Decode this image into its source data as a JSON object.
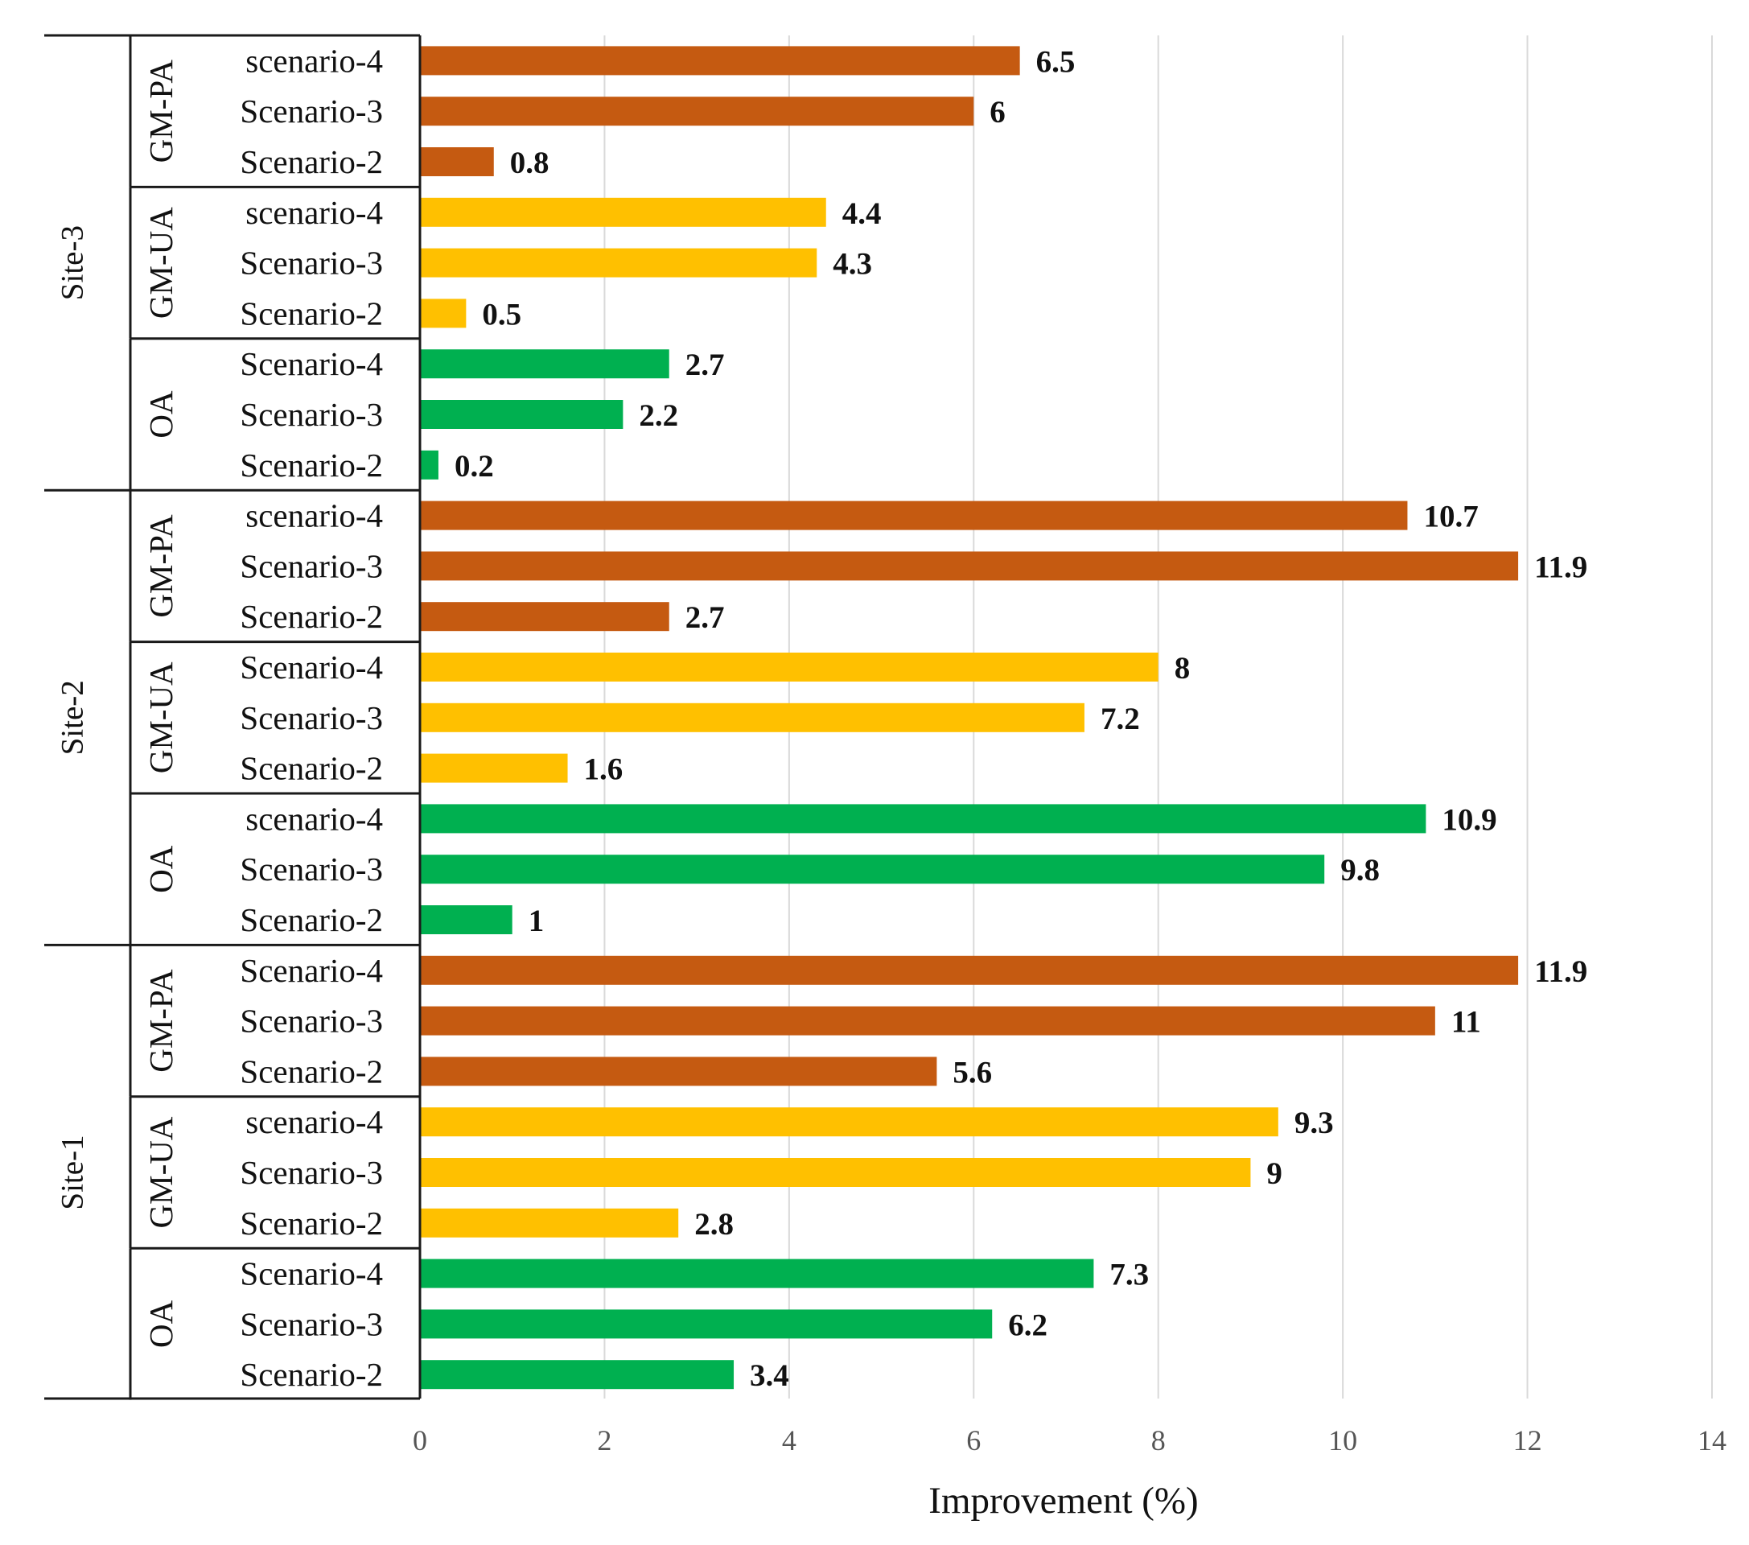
{
  "chart_data": {
    "type": "bar",
    "orientation": "horizontal",
    "title": "",
    "xlabel": "Improvement (%)",
    "ylabel": "",
    "xlim": [
      0,
      14
    ],
    "xticks": [
      0,
      2,
      4,
      6,
      8,
      10,
      12,
      14
    ],
    "grid": "vertical",
    "legend": "none",
    "colors": {
      "OA": "#00B050",
      "GM-UA": "#FFC000",
      "GM-PA": "#C55A11"
    },
    "sites": [
      {
        "name": "Site-3",
        "groups": [
          {
            "name": "GM-PA",
            "categories": [
              "scenario-4",
              "Scenario-3",
              "Scenario-2"
            ],
            "values": [
              6.5,
              6,
              0.8
            ],
            "value_labels": [
              "6.5",
              "6",
              "0.8"
            ]
          },
          {
            "name": "GM-UA",
            "categories": [
              "scenario-4",
              "Scenario-3",
              "Scenario-2"
            ],
            "values": [
              4.4,
              4.3,
              0.5
            ],
            "value_labels": [
              "4.4",
              "4.3",
              "0.5"
            ]
          },
          {
            "name": "OA",
            "categories": [
              "Scenario-4",
              "Scenario-3",
              "Scenario-2"
            ],
            "values": [
              2.7,
              2.2,
              0.2
            ],
            "value_labels": [
              "2.7",
              "2.2",
              "0.2"
            ]
          }
        ]
      },
      {
        "name": "Site-2",
        "groups": [
          {
            "name": "GM-PA",
            "categories": [
              "scenario-4",
              "Scenario-3",
              "Scenario-2"
            ],
            "values": [
              10.7,
              11.9,
              2.7
            ],
            "value_labels": [
              "10.7",
              "11.9",
              "2.7"
            ]
          },
          {
            "name": "GM-UA",
            "categories": [
              "Scenario-4",
              "Scenario-3",
              "Scenario-2"
            ],
            "values": [
              8,
              7.2,
              1.6
            ],
            "value_labels": [
              "8",
              "7.2",
              "1.6"
            ]
          },
          {
            "name": "OA",
            "categories": [
              "scenario-4",
              "Scenario-3",
              "Scenario-2"
            ],
            "values": [
              10.9,
              9.8,
              1
            ],
            "value_labels": [
              "10.9",
              "9.8",
              "1"
            ]
          }
        ]
      },
      {
        "name": "Site-1",
        "groups": [
          {
            "name": "GM-PA",
            "categories": [
              "Scenario-4",
              "Scenario-3",
              "Scenario-2"
            ],
            "values": [
              11.9,
              11,
              5.6
            ],
            "value_labels": [
              "11.9",
              "11",
              "5.6"
            ]
          },
          {
            "name": "GM-UA",
            "categories": [
              "scenario-4",
              "Scenario-3",
              "Scenario-2"
            ],
            "values": [
              9.3,
              9,
              2.8
            ],
            "value_labels": [
              "9.3",
              "9",
              "2.8"
            ]
          },
          {
            "name": "OA",
            "categories": [
              "Scenario-4",
              "Scenario-3",
              "Scenario-2"
            ],
            "values": [
              7.3,
              6.2,
              3.4
            ],
            "value_labels": [
              "7.3",
              "6.2",
              "3.4"
            ]
          }
        ]
      }
    ]
  }
}
